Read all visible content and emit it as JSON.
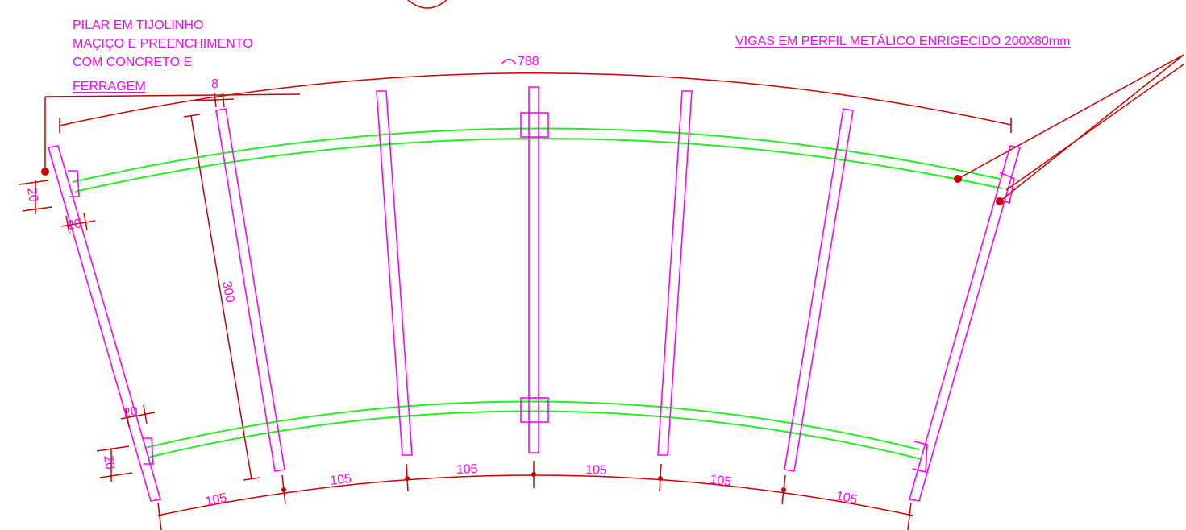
{
  "notes": {
    "pillar_lines": [
      "PILAR EM TIJOLINHO",
      "MAÇIÇO E PREENCHIMENTO",
      "COM CONCRETO E",
      "FERRAGEM"
    ],
    "beams": "VIGAS EM PERFIL METÁLICO ENRIGECIDO 200X80mm"
  },
  "dimensions": {
    "arc_length": "788",
    "column_width": "8",
    "column_length": "300",
    "pillar_top_a": "20",
    "pillar_top_b": "20",
    "pillar_bottom_a": "20",
    "pillar_bottom_b": "20",
    "spacings": [
      "105",
      "105",
      "105",
      "105",
      "105",
      "105"
    ]
  },
  "colors": {
    "annotation": "#ff00ff",
    "dimension_line": "#cc0000",
    "beam": "#22ee22"
  }
}
